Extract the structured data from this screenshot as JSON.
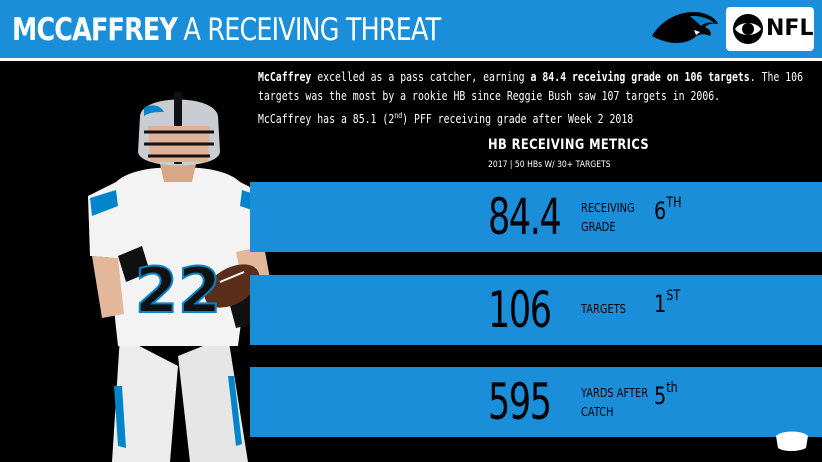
{
  "header": {
    "title_bold": "MCCAFFREY",
    "title_rest": "A RECEIVING THREAT",
    "team_logo_icon": "panthers-logo-icon",
    "network_logo_icon": "cbs-eye-icon",
    "network_label": "NFL"
  },
  "description": {
    "line1": {
      "a": "McCaffrey",
      "b": " excelled as a pass catcher, earning ",
      "c": "a 84.4 receiving grade on 106 targets",
      "d": ". The 106"
    },
    "line2": {
      "a": "targets was the most by a rookie HB since Reggie Bush saw 107 targets in 2006."
    },
    "line3": {
      "a": "McCaffrey has a 85.1 (2",
      "sup": "nd",
      "b": ") PFF receiving grade after Week 2 2018"
    }
  },
  "metrics": {
    "title": "HB RECEIVING METRICS",
    "subtitle": "2017 | 50 HBs W/ 30+ TARGETS",
    "items": [
      {
        "value": "84.4",
        "label_line1": "RECEIVING",
        "label_line2": "GRADE",
        "rank": "6",
        "rank_suffix": "TH"
      },
      {
        "value": "106",
        "label_line1": "TARGETS",
        "rank": "1",
        "rank_suffix": "ST"
      },
      {
        "value": "595",
        "label_line1": "YARDS AFTER",
        "label_line2": "CATCH",
        "rank": "5",
        "rank_suffix": "th"
      }
    ]
  },
  "colors": {
    "accent_blue": "#1a8ed8",
    "background": "#000000",
    "jersey_white": "#f2f2f2",
    "jersey_trim": "#0085ca"
  },
  "player": {
    "jersey_number": "22"
  }
}
